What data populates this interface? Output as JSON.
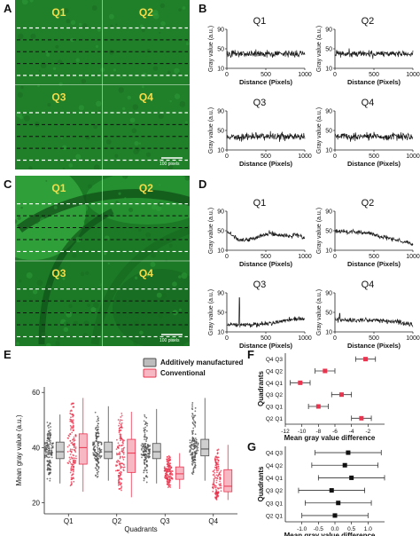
{
  "panel_letters": {
    "A": "A",
    "B": "B",
    "C": "C",
    "D": "D",
    "E": "E",
    "F": "F",
    "G": "G"
  },
  "image_panels": [
    {
      "letter": "A",
      "quadrants": [
        "Q1",
        "Q2",
        "Q3",
        "Q4"
      ],
      "scale_text": "100 pixels",
      "tone": "uniform"
    },
    {
      "letter": "C",
      "quadrants": [
        "Q1",
        "Q2",
        "Q3",
        "Q4"
      ],
      "scale_text": "100 pixels",
      "tone": "varied"
    }
  ],
  "colors": {
    "micrograph_green": "#1f8a2a",
    "quadrant_label": "#f5dc4a",
    "dashed_white": "#ffffff",
    "dashed_black": "#111111",
    "additive": "#4d4d4d",
    "conventional": "#e8344e",
    "additive_box": "#cfcfcf",
    "conventional_box": "#f7b7c3"
  },
  "chart_data": [
    {
      "id": "B",
      "type": "line",
      "panels": [
        {
          "name": "Q1",
          "ylim": [
            10,
            90
          ],
          "yticks": [
            10,
            50,
            90
          ],
          "xlim": [
            0,
            1000
          ],
          "xticks": [
            0,
            500,
            1000
          ],
          "mean": 40,
          "amp": 6
        },
        {
          "name": "Q2",
          "ylim": [
            10,
            90
          ],
          "yticks": [
            10,
            50,
            90
          ],
          "xlim": [
            0,
            1000
          ],
          "xticks": [
            0,
            500,
            1000
          ],
          "mean": 40,
          "amp": 6
        },
        {
          "name": "Q3",
          "ylim": [
            10,
            90
          ],
          "yticks": [
            10,
            50,
            90
          ],
          "xlim": [
            0,
            1000
          ],
          "xticks": [
            0,
            500,
            1000
          ],
          "mean": 37,
          "amp": 6
        },
        {
          "name": "Q4",
          "ylim": [
            10,
            90
          ],
          "yticks": [
            10,
            50,
            90
          ],
          "xlim": [
            0,
            1000
          ],
          "xticks": [
            0,
            500,
            1000
          ],
          "mean": 38,
          "amp": 6
        }
      ],
      "xlabel": "Distance (Pixels)",
      "ylabel": "Gray value (a.u.)"
    },
    {
      "id": "D",
      "type": "line",
      "panels": [
        {
          "name": "Q1",
          "ylim": [
            10,
            90
          ],
          "yticks": [
            10,
            50,
            90
          ],
          "xlim": [
            0,
            1000
          ],
          "xticks": [
            0,
            500,
            1000
          ],
          "trend": [
            [
              0,
              48
            ],
            [
              100,
              38
            ],
            [
              150,
              30
            ],
            [
              300,
              32
            ],
            [
              450,
              40
            ],
            [
              550,
              45
            ],
            [
              650,
              42
            ],
            [
              800,
              40
            ],
            [
              900,
              42
            ],
            [
              1000,
              34
            ]
          ]
        },
        {
          "name": "Q2",
          "ylim": [
            10,
            90
          ],
          "yticks": [
            10,
            50,
            90
          ],
          "xlim": [
            0,
            1000
          ],
          "xticks": [
            0,
            500,
            1000
          ],
          "trend": [
            [
              0,
              50
            ],
            [
              200,
              48
            ],
            [
              400,
              46
            ],
            [
              600,
              38
            ],
            [
              800,
              30
            ],
            [
              900,
              26
            ],
            [
              1000,
              22
            ]
          ]
        },
        {
          "name": "Q3",
          "ylim": [
            10,
            90
          ],
          "yticks": [
            10,
            50,
            90
          ],
          "xlim": [
            0,
            1000
          ],
          "xticks": [
            0,
            500,
            1000
          ],
          "trend": [
            [
              0,
              24
            ],
            [
              120,
              24
            ],
            [
              300,
              25
            ],
            [
              500,
              26
            ],
            [
              700,
              32
            ],
            [
              850,
              36
            ],
            [
              1000,
              38
            ]
          ],
          "spike": [
            160,
            80
          ]
        },
        {
          "name": "Q4",
          "ylim": [
            10,
            90
          ],
          "yticks": [
            10,
            50,
            90
          ],
          "xlim": [
            0,
            1000
          ],
          "xticks": [
            0,
            500,
            1000
          ],
          "trend": [
            [
              0,
              36
            ],
            [
              200,
              34
            ],
            [
              500,
              33
            ],
            [
              800,
              31
            ],
            [
              1000,
              24
            ]
          ],
          "spike": [
            60,
            48
          ]
        }
      ],
      "xlabel": "Distance (Pixels)",
      "ylabel": "Gray value (a.u.)"
    },
    {
      "id": "E",
      "type": "box",
      "categories": [
        "Q1",
        "Q2",
        "Q3",
        "Q4"
      ],
      "series": [
        {
          "name": "Additively manufactured",
          "color": "#4d4d4d",
          "boxes": [
            {
              "min": 27,
              "q1": 36,
              "median": 38.5,
              "q3": 42,
              "max": 52
            },
            {
              "min": 28,
              "q1": 36,
              "median": 38.5,
              "q3": 42,
              "max": 55
            },
            {
              "min": 27,
              "q1": 36,
              "median": 38.5,
              "q3": 41.5,
              "max": 54
            },
            {
              "min": 28,
              "q1": 37,
              "median": 39.5,
              "q3": 43,
              "max": 58
            }
          ]
        },
        {
          "name": "Conventional",
          "color": "#e8344e",
          "boxes": [
            {
              "min": 24,
              "q1": 34,
              "median": 40,
              "q3": 45,
              "max": 58
            },
            {
              "min": 22,
              "q1": 31,
              "median": 38,
              "q3": 43,
              "max": 53
            },
            {
              "min": 25,
              "q1": 28.5,
              "median": 30.5,
              "q3": 33,
              "max": 38
            },
            {
              "min": 21,
              "q1": 24,
              "median": 26,
              "q3": 32,
              "max": 41
            }
          ]
        }
      ],
      "xlabel": "Quadrants",
      "ylabel": "Mean gray value (a.u.)",
      "ylim": [
        16,
        62
      ],
      "yticks": [
        20,
        40,
        60
      ]
    },
    {
      "id": "F",
      "type": "errorbar",
      "categories": [
        "Q4 Q3",
        "Q4 Q2",
        "Q4 Q1",
        "Q3 Q2",
        "Q3 Q1",
        "Q2 Q1"
      ],
      "values": [
        -2.3,
        -7.2,
        -10.2,
        -5.2,
        -8.0,
        -2.8
      ],
      "ci": [
        [
          -3.5,
          -1.1
        ],
        [
          -8.4,
          -6.0
        ],
        [
          -11.4,
          -9.0
        ],
        [
          -6.4,
          -4.0
        ],
        [
          -9.2,
          -6.8
        ],
        [
          -4.0,
          -1.6
        ]
      ],
      "xlim": [
        -12,
        0
      ],
      "xticks": [
        -12,
        -10,
        -8,
        -6,
        -4,
        -2
      ],
      "xlabel": "Mean gray value difference",
      "ylabel": "Quadrants"
    },
    {
      "id": "G",
      "type": "errorbar",
      "categories": [
        "Q4 Q3",
        "Q4 Q2",
        "Q4 Q1",
        "Q3 Q2",
        "Q3 Q1",
        "Q2 Q1"
      ],
      "values": [
        0.4,
        0.3,
        0.5,
        -0.1,
        0.1,
        0.0
      ],
      "ci": [
        [
          -0.6,
          1.4
        ],
        [
          -0.7,
          1.3
        ],
        [
          -0.5,
          1.5
        ],
        [
          -1.1,
          0.9
        ],
        [
          -0.9,
          1.1
        ],
        [
          -1.0,
          1.0
        ]
      ],
      "xlim": [
        -1.5,
        1.5
      ],
      "xticks": [
        -1.0,
        -0.5,
        0.0,
        0.5,
        1.0
      ],
      "xtick_labels": [
        "-1.0",
        "-0.5",
        "0.0",
        "0.5",
        "1.0"
      ],
      "xlabel": "Mean gray value difference",
      "ylabel": "Quadrants"
    }
  ]
}
